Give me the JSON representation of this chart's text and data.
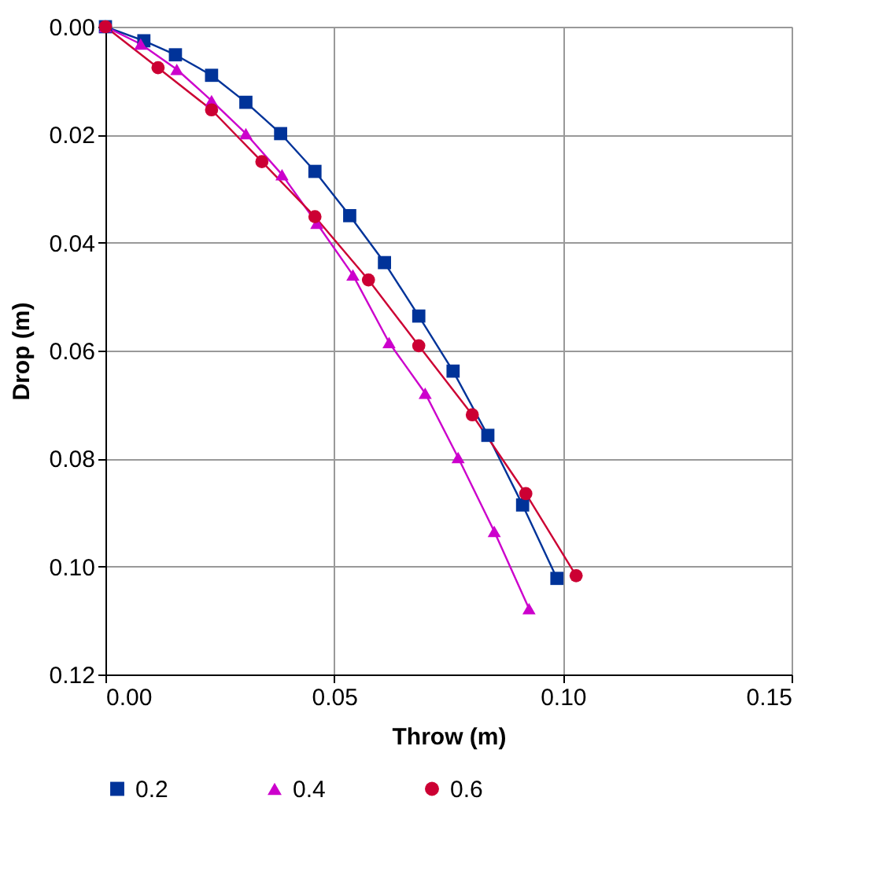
{
  "chart_data": {
    "type": "line",
    "xlabel": "Throw (m)",
    "ylabel": "Drop (m)",
    "xlim": [
      0,
      0.15
    ],
    "ylim": [
      0.12,
      0
    ],
    "xticks": [
      {
        "value": 0,
        "label": "0.00"
      },
      {
        "value": 0.05,
        "label": "0.05"
      },
      {
        "value": 0.1,
        "label": "0.10"
      },
      {
        "value": 0.15,
        "label": "0.15"
      }
    ],
    "yticks": [
      {
        "value": 0,
        "label": "0.00"
      },
      {
        "value": 0.02,
        "label": "0.02"
      },
      {
        "value": 0.04,
        "label": "0.04"
      },
      {
        "value": 0.06,
        "label": "0.06"
      },
      {
        "value": 0.08,
        "label": "0.08"
      },
      {
        "value": 0.1,
        "label": "0.10"
      },
      {
        "value": 0.12,
        "label": "0.12"
      }
    ],
    "grid": true,
    "legend": "bottom",
    "line_style": "solid",
    "series": [
      {
        "name": "0.2",
        "color": "#003399",
        "marker": "square",
        "x": [
          0,
          0.0084,
          0.0153,
          0.0232,
          0.0307,
          0.0383,
          0.0458,
          0.0534,
          0.061,
          0.0685,
          0.076,
          0.0836,
          0.0912,
          0.0987
        ],
        "values": [
          0,
          0.0026,
          0.0052,
          0.009,
          0.014,
          0.0198,
          0.0268,
          0.035,
          0.0437,
          0.0536,
          0.0638,
          0.0757,
          0.0886,
          0.1022
        ]
      },
      {
        "name": "0.4",
        "color": "#cc00cc",
        "marker": "triangle",
        "x": [
          0,
          0.0077,
          0.0156,
          0.0232,
          0.0307,
          0.0386,
          0.0462,
          0.0541,
          0.062,
          0.0699,
          0.0771,
          0.085,
          0.0926
        ],
        "values": [
          0,
          0.0032,
          0.0079,
          0.0137,
          0.0198,
          0.0274,
          0.0364,
          0.046,
          0.0585,
          0.0679,
          0.0798,
          0.0935,
          0.1078
        ]
      },
      {
        "name": "0.6",
        "color": "#cc0033",
        "marker": "circle",
        "x": [
          0,
          0.0115,
          0.0232,
          0.0342,
          0.0458,
          0.0575,
          0.0685,
          0.0802,
          0.0919,
          0.1029
        ],
        "values": [
          0,
          0.0076,
          0.0154,
          0.025,
          0.0352,
          0.0469,
          0.0591,
          0.0719,
          0.0865,
          0.1017
        ]
      }
    ]
  }
}
